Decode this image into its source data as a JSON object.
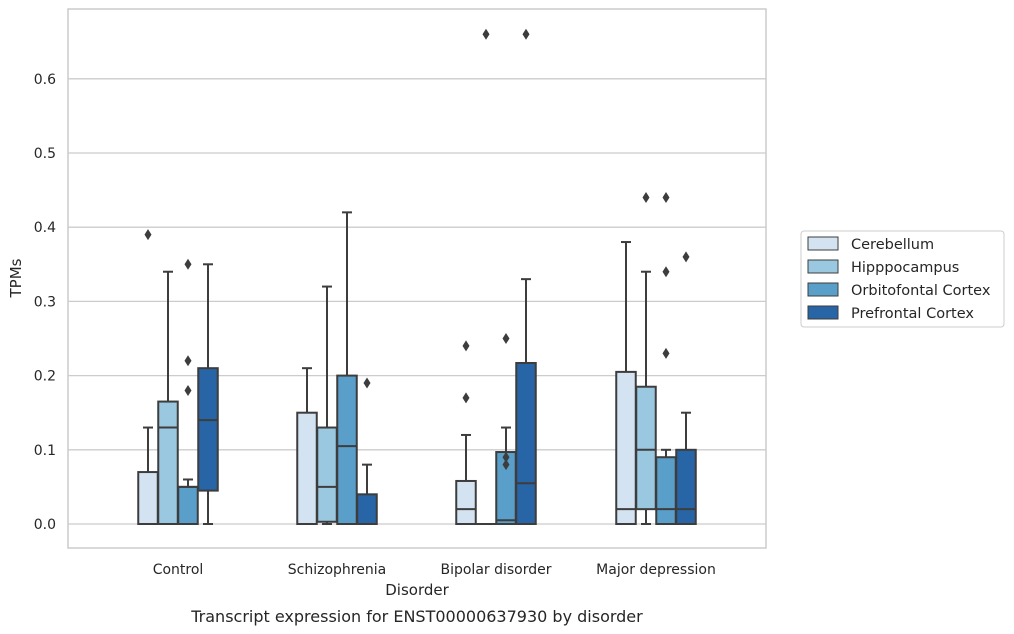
{
  "chart_data": {
    "type": "box",
    "title": "",
    "caption": "Transcript expression for ENST00000637930 by disorder",
    "xlabel": "Disorder",
    "ylabel": "TPMs",
    "ylim": [
      -0.032,
      0.695
    ],
    "yticks": [
      0.0,
      0.1,
      0.2,
      0.3,
      0.4,
      0.5,
      0.6
    ],
    "ytick_labels": [
      "0.0",
      "0.1",
      "0.2",
      "0.3",
      "0.4",
      "0.5",
      "0.6"
    ],
    "grid": true,
    "legend_position": "right",
    "categories": [
      "Control",
      "Schizophrenia",
      "Bipolar disorder",
      "Major depression"
    ],
    "series": [
      {
        "name": "Cerebellum",
        "color": "#d3e3f2",
        "boxes": [
          {
            "whislo": 0.0,
            "q1": 0.0,
            "med": 0.0,
            "q3": 0.07,
            "whishi": 0.13,
            "fliers": [
              0.39
            ]
          },
          {
            "whislo": 0.0,
            "q1": 0.0,
            "med": 0.0,
            "q3": 0.15,
            "whishi": 0.21,
            "fliers": []
          },
          {
            "whislo": 0.0,
            "q1": 0.0,
            "med": 0.02,
            "q3": 0.058,
            "whishi": 0.12,
            "fliers": [
              0.17,
              0.24
            ]
          },
          {
            "whislo": 0.0,
            "q1": 0.0,
            "med": 0.02,
            "q3": 0.205,
            "whishi": 0.38,
            "fliers": []
          }
        ]
      },
      {
        "name": "Hipppocampus",
        "color": "#9ac8e0",
        "boxes": [
          {
            "whislo": 0.0,
            "q1": 0.0,
            "med": 0.13,
            "q3": 0.165,
            "whishi": 0.34,
            "fliers": []
          },
          {
            "whislo": 0.0,
            "q1": 0.003,
            "med": 0.05,
            "q3": 0.13,
            "whishi": 0.32,
            "fliers": []
          },
          {
            "whislo": 0.0,
            "q1": 0.0,
            "med": 0.0,
            "q3": 0.0,
            "whishi": 0.0,
            "fliers": [
              0.66
            ]
          },
          {
            "whislo": 0.0,
            "q1": 0.02,
            "med": 0.1,
            "q3": 0.185,
            "whishi": 0.34,
            "fliers": [
              0.44
            ]
          }
        ]
      },
      {
        "name": "Orbitofontal Cortex",
        "color": "#5a9fca",
        "boxes": [
          {
            "whislo": 0.0,
            "q1": 0.0,
            "med": 0.05,
            "q3": 0.05,
            "whishi": 0.06,
            "fliers": [
              0.18,
              0.22,
              0.35
            ]
          },
          {
            "whislo": 0.0,
            "q1": 0.0,
            "med": 0.105,
            "q3": 0.2,
            "whishi": 0.42,
            "fliers": []
          },
          {
            "whislo": 0.0,
            "q1": 0.0,
            "med": 0.005,
            "q3": 0.097,
            "whishi": 0.13,
            "fliers": [
              0.08,
              0.09,
              0.25
            ]
          },
          {
            "whislo": 0.0,
            "q1": 0.0,
            "med": 0.02,
            "q3": 0.09,
            "whishi": 0.1,
            "fliers": [
              0.23,
              0.34,
              0.44
            ]
          }
        ]
      },
      {
        "name": "Prefrontal Cortex",
        "color": "#2865a6",
        "boxes": [
          {
            "whislo": 0.0,
            "q1": 0.045,
            "med": 0.14,
            "q3": 0.21,
            "whishi": 0.35,
            "fliers": []
          },
          {
            "whislo": 0.0,
            "q1": 0.0,
            "med": 0.0,
            "q3": 0.04,
            "whishi": 0.08,
            "fliers": [
              0.19
            ]
          },
          {
            "whislo": 0.0,
            "q1": 0.0,
            "med": 0.055,
            "q3": 0.217,
            "whishi": 0.33,
            "fliers": [
              0.66
            ]
          },
          {
            "whislo": 0.0,
            "q1": 0.0,
            "med": 0.02,
            "q3": 0.1,
            "whishi": 0.15,
            "fliers": [
              0.36
            ]
          }
        ]
      }
    ]
  }
}
